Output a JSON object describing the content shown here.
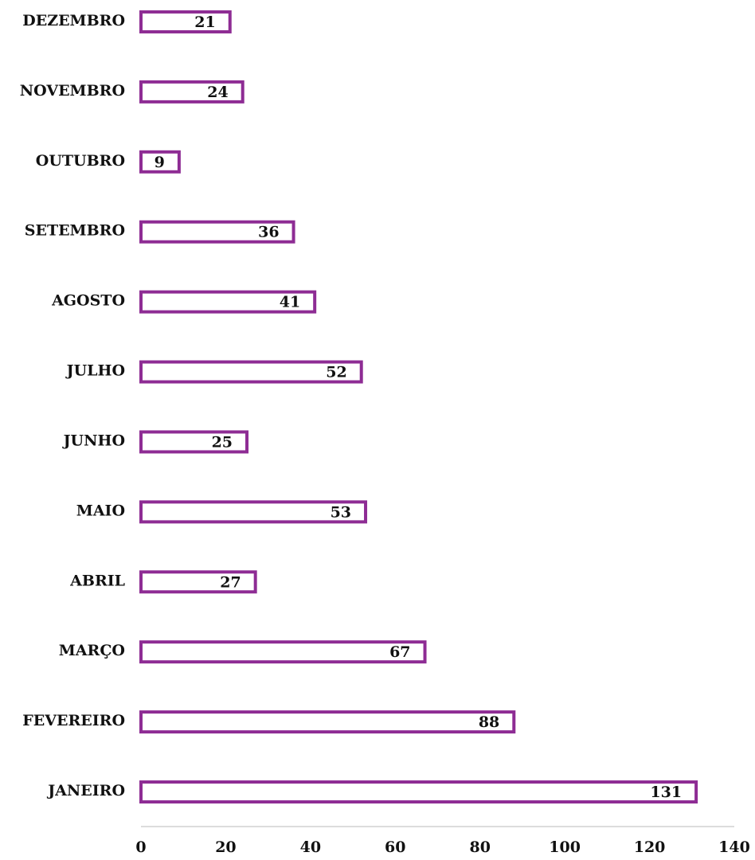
{
  "chart_data": {
    "type": "barh",
    "categories": [
      "JANEIRO",
      "FEVEREIRO",
      "MARÇO",
      "ABRIL",
      "MAIO",
      "JUNHO",
      "JULHO",
      "AGOSTO",
      "SETEMBRO",
      "OUTUBRO",
      "NOVEMBRO",
      "DEZEMBRO"
    ],
    "values": [
      131,
      88,
      67,
      27,
      53,
      25,
      52,
      41,
      36,
      9,
      24,
      21
    ],
    "color": "#8e2c94",
    "xlim": [
      0,
      140
    ],
    "xticks": [
      0,
      20,
      40,
      60,
      80,
      100,
      120,
      140
    ],
    "grid": false
  }
}
